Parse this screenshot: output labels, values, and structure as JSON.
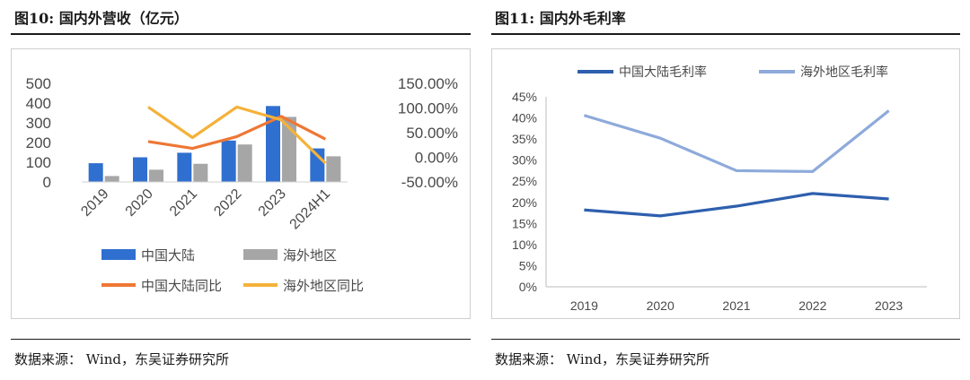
{
  "figures": [
    {
      "title": "图10: 国内外营收（亿元）",
      "source": "数据来源： Wind，东吴证券研究所"
    },
    {
      "title": "图11: 国内外毛利率",
      "source": "数据来源： Wind，东吴证券研究所"
    }
  ],
  "chart_data": [
    {
      "type": "bar",
      "categories": [
        "2019",
        "2020",
        "2021",
        "2022",
        "2023",
        "2024H1"
      ],
      "y_left_ticks": [
        "500",
        "400",
        "300",
        "200",
        "100",
        "0"
      ],
      "y_right_ticks": [
        "150.00%",
        "100.00%",
        "50.00%",
        "0.00%",
        "-50.00%"
      ],
      "ylim_left": [
        0,
        500
      ],
      "ylim_right": [
        -50,
        150
      ],
      "bar_series": [
        {
          "name": "中国大陆",
          "color": "#2f6fcf",
          "values": [
            95,
            125,
            148,
            210,
            385,
            170
          ]
        },
        {
          "name": "海外地区",
          "color": "#a6a6a6",
          "values": [
            30,
            62,
            92,
            190,
            330,
            130
          ]
        }
      ],
      "line_series": [
        {
          "name": "中国大陆同比",
          "color": "#ee7734",
          "values": [
            null,
            32,
            18,
            42,
            83,
            37
          ]
        },
        {
          "name": "海外地区同比",
          "color": "#f4b23a",
          "values": [
            null,
            102,
            40,
            102,
            76,
            -12
          ]
        }
      ],
      "legend": "bottom"
    },
    {
      "type": "line",
      "categories": [
        "2019",
        "2020",
        "2021",
        "2022",
        "2023"
      ],
      "y_ticks": [
        "45%",
        "40%",
        "35%",
        "30%",
        "25%",
        "20%",
        "15%",
        "10%",
        "5%",
        "0%"
      ],
      "ylim": [
        0,
        45
      ],
      "series": [
        {
          "name": "中国大陆毛利率",
          "color": "#2e5fae",
          "values": [
            18.2,
            16.8,
            19.1,
            22.1,
            20.8
          ]
        },
        {
          "name": "海外地区毛利率",
          "color": "#8eaadb",
          "values": [
            40.6,
            35.2,
            27.5,
            27.3,
            41.7
          ]
        }
      ],
      "legend": "top"
    }
  ]
}
